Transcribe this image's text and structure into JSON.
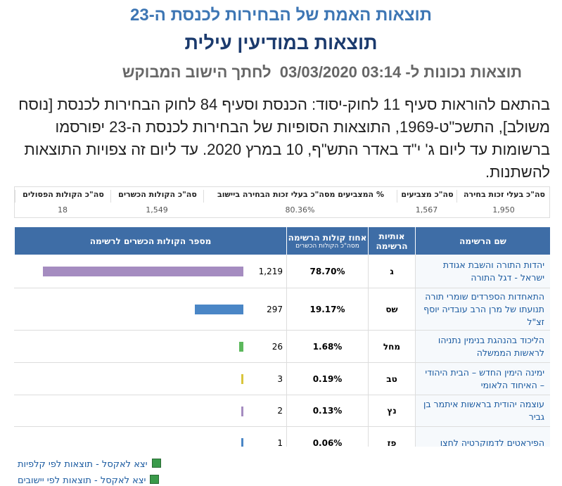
{
  "header": {
    "title": "תוצאות האמת של הבחירות לכנסת ה-23",
    "subtitle": "תוצאות במודיעין עילית",
    "timestamp": "תוצאות נכונות ל- 03:14 03/03/2020  לחתך הישוב המבוקש"
  },
  "notice": "בהתאם להוראות סעיף 11 לחוק-יסוד: הכנסת וסעיף 84 לחוק הבחירות לכנסת [נוסח משולב], התשכ\"ט-1969, התוצאות הסופיות של הבחירות לכנסת ה-23 יפורסמו ברשומות עד ליום ג' י\"ד באדר התש\"ף, 10 במרץ 2020. עד ליום זה צפויות התוצאות להשתנות.",
  "summary": {
    "headers": [
      "סה\"כ בעלי זכות בחירה",
      "סה\"כ מצביעים",
      "% המצביעים מסה\"כ בעלי זכות הבחירה ביישוב",
      "סה\"כ הקולות הכשרים",
      "סה\"כ הקולות הפסולים"
    ],
    "values": [
      "1,950",
      "1,567",
      "80.36%",
      "1,549",
      "18"
    ]
  },
  "results": {
    "headers": {
      "name": "שם הרשימה",
      "letters": "אותיות הרשימה",
      "percent": "אחוז קולות הרשימה",
      "percent_note": "מסה\"כ הקולות הכשרים",
      "votes": "מספר הקולות הכשרים לרשימה"
    },
    "rows": [
      {
        "name": "יהדות התורה והשבת אגודת ישראל - דגל התורה",
        "letters": "ג",
        "percent": "78.70%",
        "votes": 1219,
        "votes_label": "1,219",
        "color": "#a58cc0"
      },
      {
        "name": "התאחדות הספרדים שומרי תורה תנועתו של מרן הרב עובדיה יוסף זצ\"ל",
        "letters": "שס",
        "percent": "19.17%",
        "votes": 297,
        "votes_label": "297",
        "color": "#4a86c6"
      },
      {
        "name": "הליכוד בהנהגת בנימין נתניהו לראשות הממשלה",
        "letters": "מחל",
        "percent": "1.68%",
        "votes": 26,
        "votes_label": "26",
        "color": "#5cb85c"
      },
      {
        "name": "ימינה הימין החדש – הבית היהודי – האיחוד הלאומי",
        "letters": "טב",
        "percent": "0.19%",
        "votes": 3,
        "votes_label": "3",
        "color": "#d9c53c"
      },
      {
        "name": "עוצמה יהודית בראשות איתמר בן גביר",
        "letters": "נץ",
        "percent": "0.13%",
        "votes": 2,
        "votes_label": "2",
        "color": "#a58cc0"
      },
      {
        "name": "הפיראטים לדמוקרטיה לחצו",
        "letters": "פז",
        "percent": "0.06%",
        "votes": 1,
        "votes_label": "1",
        "color": "#4a86c6"
      }
    ]
  },
  "links": [
    "יצא לאקסל - תוצאות לפי קלפיות",
    "יצא לאקסל - תוצאות לפי יישובים"
  ]
}
